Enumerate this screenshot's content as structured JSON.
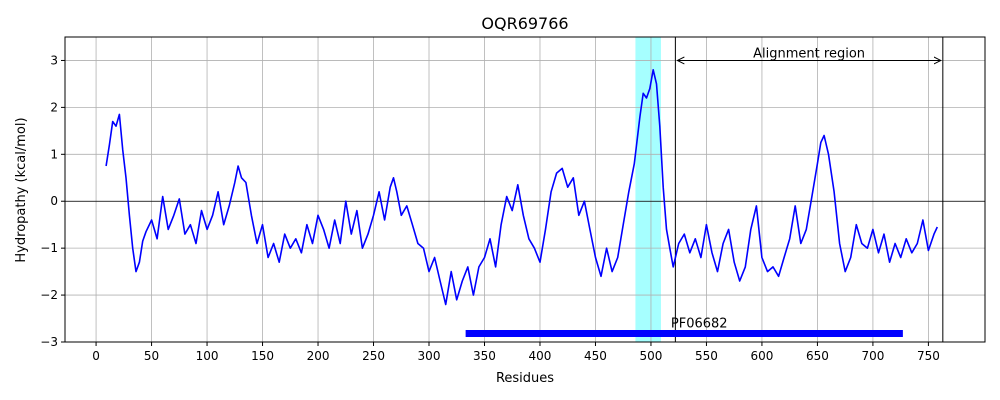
{
  "chart_data": {
    "type": "line",
    "title": "OQR69766",
    "xlabel": "Residues",
    "ylabel": "Hydropathy (kcal/mol)",
    "xlim": [
      -28,
      801
    ],
    "ylim": [
      -3,
      3.5
    ],
    "xticks": [
      0,
      50,
      100,
      150,
      200,
      250,
      300,
      350,
      400,
      450,
      500,
      550,
      600,
      650,
      700,
      750
    ],
    "yticks": [
      -3,
      -2,
      -1,
      0,
      1,
      2,
      3
    ],
    "grid": true,
    "series": [
      {
        "color": "#0000ff",
        "x": [
          9,
          12,
          15,
          18,
          21,
          24,
          27,
          30,
          33,
          36,
          39,
          42,
          45,
          50,
          55,
          60,
          65,
          70,
          75,
          80,
          85,
          90,
          95,
          100,
          105,
          110,
          115,
          120,
          125,
          128,
          131,
          135,
          140,
          145,
          150,
          155,
          160,
          165,
          170,
          175,
          180,
          185,
          190,
          195,
          200,
          205,
          210,
          215,
          220,
          225,
          230,
          235,
          240,
          245,
          250,
          255,
          260,
          265,
          268,
          271,
          275,
          280,
          285,
          290,
          295,
          300,
          305,
          310,
          315,
          320,
          325,
          330,
          335,
          340,
          345,
          350,
          355,
          360,
          365,
          370,
          375,
          380,
          385,
          390,
          395,
          400,
          405,
          410,
          415,
          420,
          425,
          430,
          435,
          440,
          445,
          450,
          455,
          460,
          465,
          470,
          475,
          480,
          485,
          490,
          493,
          496,
          499,
          502,
          505,
          508,
          511,
          514,
          517,
          520,
          525,
          530,
          535,
          540,
          545,
          550,
          555,
          560,
          565,
          570,
          575,
          580,
          585,
          590,
          595,
          600,
          605,
          610,
          615,
          620,
          625,
          630,
          635,
          640,
          645,
          650,
          653,
          656,
          660,
          665,
          670,
          675,
          680,
          685,
          690,
          695,
          700,
          705,
          710,
          715,
          720,
          725,
          730,
          735,
          740,
          745,
          750,
          755,
          758
        ],
        "y": [
          0.75,
          1.2,
          1.7,
          1.6,
          1.85,
          1.1,
          0.5,
          -0.3,
          -1.0,
          -1.5,
          -1.3,
          -0.85,
          -0.65,
          -0.4,
          -0.8,
          0.1,
          -0.6,
          -0.3,
          0.05,
          -0.7,
          -0.5,
          -0.9,
          -0.2,
          -0.6,
          -0.3,
          0.2,
          -0.5,
          -0.1,
          0.4,
          0.75,
          0.5,
          0.4,
          -0.3,
          -0.9,
          -0.5,
          -1.2,
          -0.9,
          -1.3,
          -0.7,
          -1.0,
          -0.8,
          -1.1,
          -0.5,
          -0.9,
          -0.3,
          -0.6,
          -1.0,
          -0.4,
          -0.9,
          0.0,
          -0.7,
          -0.2,
          -1.0,
          -0.7,
          -0.3,
          0.2,
          -0.4,
          0.3,
          0.5,
          0.2,
          -0.3,
          -0.1,
          -0.5,
          -0.9,
          -1.0,
          -1.5,
          -1.2,
          -1.7,
          -2.2,
          -1.5,
          -2.1,
          -1.7,
          -1.4,
          -2.0,
          -1.4,
          -1.2,
          -0.8,
          -1.4,
          -0.5,
          0.1,
          -0.2,
          0.35,
          -0.3,
          -0.8,
          -1.0,
          -1.3,
          -0.6,
          0.2,
          0.6,
          0.7,
          0.3,
          0.5,
          -0.3,
          0.0,
          -0.6,
          -1.2,
          -1.6,
          -1.0,
          -1.5,
          -1.2,
          -0.5,
          0.2,
          0.8,
          1.8,
          2.3,
          2.2,
          2.4,
          2.8,
          2.5,
          1.6,
          0.3,
          -0.6,
          -1.0,
          -1.4,
          -0.9,
          -0.7,
          -1.1,
          -0.8,
          -1.2,
          -0.5,
          -1.1,
          -1.5,
          -0.9,
          -0.6,
          -1.3,
          -1.7,
          -1.4,
          -0.6,
          -0.1,
          -1.2,
          -1.5,
          -1.4,
          -1.6,
          -1.2,
          -0.8,
          -0.1,
          -0.9,
          -0.6,
          0.1,
          0.8,
          1.25,
          1.4,
          1.0,
          0.2,
          -0.9,
          -1.5,
          -1.2,
          -0.5,
          -0.9,
          -1.0,
          -0.6,
          -1.1,
          -0.7,
          -1.3,
          -0.9,
          -1.2,
          -0.8,
          -1.1,
          -0.9,
          -0.4,
          -1.05,
          -0.7,
          -0.55
        ]
      }
    ],
    "highlight_region": {
      "x0": 486,
      "x1": 509,
      "color": "#a6ffff"
    },
    "vlines": [
      522,
      763
    ],
    "hline": 0,
    "annotations": {
      "alignment_label": "Alignment region",
      "arrow_y": 3.0
    },
    "domains": [
      {
        "name": "PF06682",
        "start": 333,
        "end": 727,
        "y": -2.82,
        "color": "#0000ff"
      }
    ]
  }
}
